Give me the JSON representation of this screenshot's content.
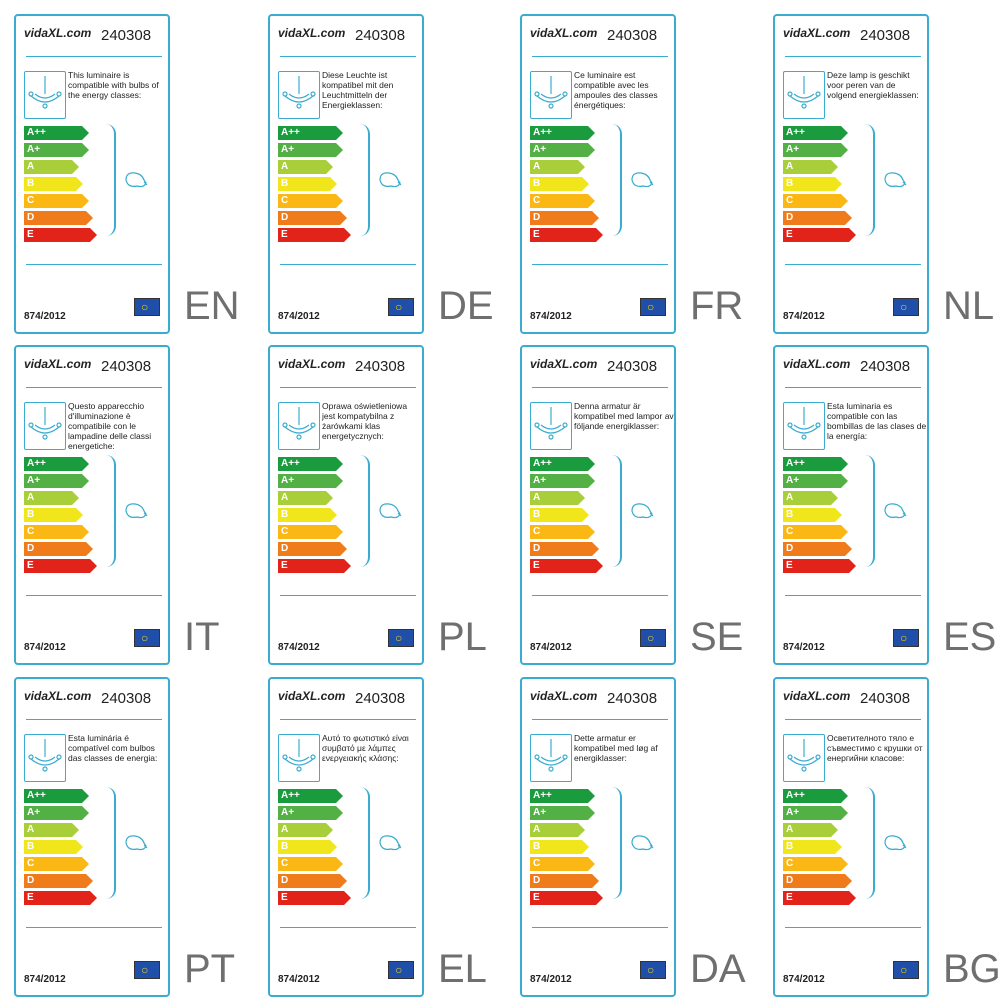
{
  "brand": "vidaXL.com",
  "product_code": "240308",
  "regulation": "874/2012",
  "classes": [
    {
      "label": "A++",
      "color": "#1a9c3e"
    },
    {
      "label": "A+",
      "color": "#52b045"
    },
    {
      "label": "A",
      "color": "#a8cf3a"
    },
    {
      "label": "B",
      "color": "#f1e61b"
    },
    {
      "label": "C",
      "color": "#fbb814"
    },
    {
      "label": "D",
      "color": "#ef7b1b"
    },
    {
      "label": "E",
      "color": "#e2231a"
    }
  ],
  "labels": [
    {
      "lang": "EN",
      "text": "This luminaire is compatible with bulbs of the energy classes:"
    },
    {
      "lang": "DE",
      "text": "Diese Leuchte ist kompatibel mit den Leuchtmitteln der Energieklassen:"
    },
    {
      "lang": "FR",
      "text": "Ce luminaire est compatible avec les ampoules des classes énergétiques:"
    },
    {
      "lang": "NL",
      "text": "Deze lamp is geschikt voor peren van de volgend energieklassen:"
    },
    {
      "lang": "IT",
      "text": "Questo apparecchio d'illuminazione è compatibile con le lampadine delle classi energetiche:"
    },
    {
      "lang": "PL",
      "text": "Oprawa oświetleniowa jest kompatybilna z żarówkami klas energetycznych:"
    },
    {
      "lang": "SE",
      "text": "Denna armatur är kompatibel med lampor av följande energiklasser:"
    },
    {
      "lang": "ES",
      "text": "Esta luminaria es compatible con las bombillas de las clases de la energía:"
    },
    {
      "lang": "PT",
      "text": "Esta luminária é compatível com bulbos das classes de energia:"
    },
    {
      "lang": "EL",
      "text": "Αυτό το φωτιστικό είναι συμβατό με λάμπες ενεργειακής κλάσης:"
    },
    {
      "lang": "DA",
      "text": "Dette armatur er kompatibel med løg af energiklasser:"
    },
    {
      "lang": "BG",
      "text": "Осветителното тяло е съвместимо с крушки от енергийни класове:"
    }
  ]
}
